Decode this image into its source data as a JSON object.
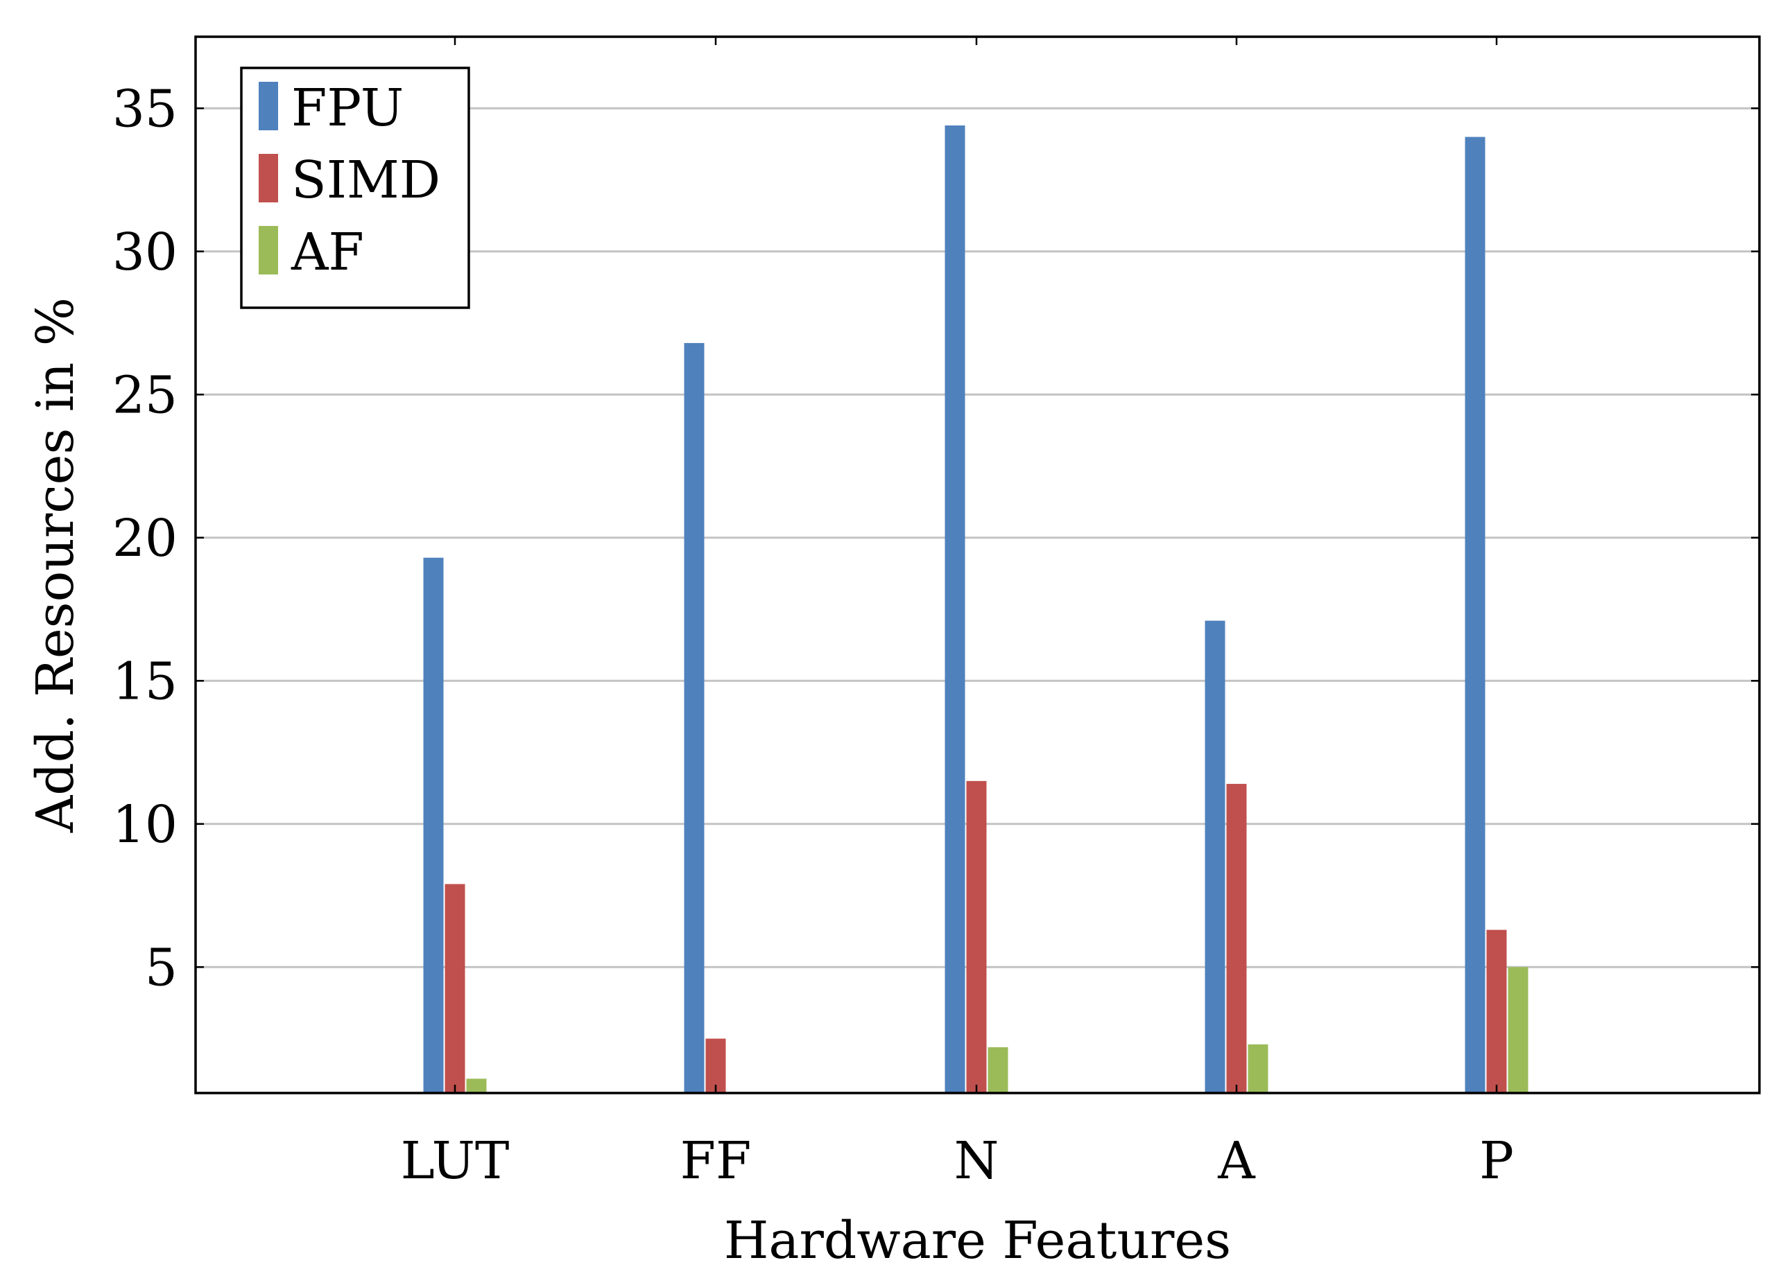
{
  "chart_data": {
    "type": "bar",
    "categories": [
      "LUT",
      "FF",
      "N",
      "A",
      "P"
    ],
    "series": [
      {
        "name": "FPU",
        "color": "#4f81bd",
        "values": [
          19.3,
          26.8,
          34.4,
          17.1,
          34.0
        ]
      },
      {
        "name": "SIMD",
        "color": "#c0504d",
        "values": [
          7.9,
          2.5,
          11.5,
          11.4,
          6.3
        ]
      },
      {
        "name": "AF",
        "color": "#9bbb59",
        "values": [
          1.1,
          0.4,
          2.2,
          2.3,
          5.0
        ]
      }
    ],
    "title": "",
    "xlabel": "Hardware Features",
    "ylabel": "Add. Resources in %",
    "ylim": [
      0.6,
      37.5
    ],
    "yticks": [
      5,
      10,
      15,
      20,
      25,
      30,
      35
    ],
    "ytick_labels": [
      "5",
      "10",
      "15",
      "20",
      "25",
      "30",
      "35"
    ],
    "grid": "horizontal",
    "legend_position": "top-left",
    "frame_color": "#000000",
    "grid_color": "#c3c3c3"
  }
}
